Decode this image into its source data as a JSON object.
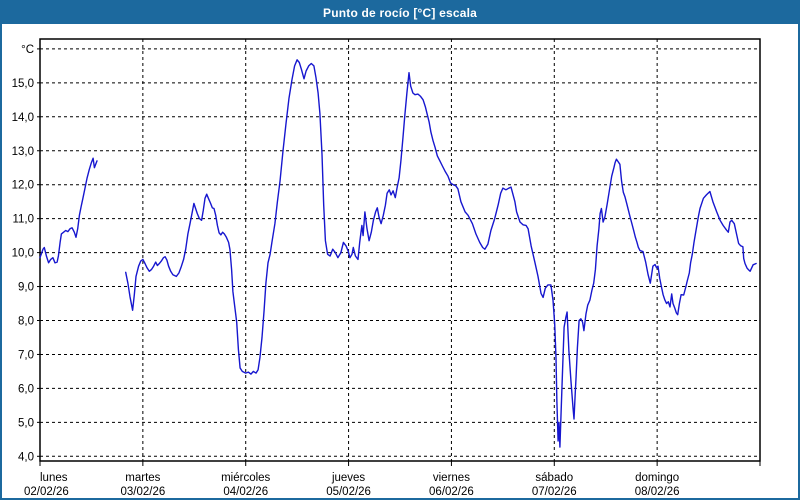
{
  "window": {
    "title": "Punto de rocío [°C] escala"
  },
  "chart_data": {
    "type": "line",
    "title": "Punto de rocío [°C] escala",
    "ylabel": "°C",
    "y_unit_label": "°C",
    "ylim": [
      3.85,
      16.3
    ],
    "y_gridlines": [
      4,
      5,
      6,
      7,
      8,
      9,
      10,
      11,
      12,
      13,
      14,
      15,
      16
    ],
    "y_tick_labels": [
      "4,0",
      "5,0",
      "6,0",
      "7,0",
      "8,0",
      "9,0",
      "10,0",
      "11,0",
      "12,0",
      "13,0",
      "14,0",
      "15,0"
    ],
    "grid": "dashed-black-both-axes",
    "legend": "none",
    "line_color": "#1717cf",
    "grid_color": "#000000",
    "x_hours_range": [
      0,
      168
    ],
    "x_days": [
      {
        "label": "lunes",
        "date": "02/02/26"
      },
      {
        "label": "martes",
        "date": "03/02/26"
      },
      {
        "label": "miércoles",
        "date": "04/02/26"
      },
      {
        "label": "jueves",
        "date": "05/02/26"
      },
      {
        "label": "viernes",
        "date": "06/02/26"
      },
      {
        "label": "sábado",
        "date": "07/02/26"
      },
      {
        "label": "domingo",
        "date": "08/02/26"
      }
    ],
    "segments": [
      [
        [
          0,
          9.85
        ],
        [
          0.7,
          10.1
        ],
        [
          1,
          10.15
        ],
        [
          1.5,
          9.9
        ],
        [
          2,
          9.7
        ],
        [
          2.5,
          9.8
        ],
        [
          3,
          9.85
        ],
        [
          3.5,
          9.7
        ],
        [
          4,
          9.72
        ],
        [
          4.3,
          9.9
        ],
        [
          4.7,
          10.3
        ],
        [
          5,
          10.55
        ],
        [
          5.5,
          10.6
        ],
        [
          6,
          10.65
        ],
        [
          6.5,
          10.62
        ],
        [
          7,
          10.7
        ],
        [
          7.5,
          10.73
        ],
        [
          8,
          10.6
        ],
        [
          8.4,
          10.45
        ],
        [
          8.8,
          10.7
        ],
        [
          9.2,
          11.1
        ],
        [
          9.6,
          11.35
        ],
        [
          10,
          11.6
        ],
        [
          10.5,
          11.9
        ],
        [
          11,
          12.2
        ],
        [
          11.5,
          12.45
        ],
        [
          12,
          12.65
        ],
        [
          12.4,
          12.78
        ],
        [
          12.7,
          12.5
        ],
        [
          13,
          12.6
        ],
        [
          13.3,
          12.7
        ]
      ],
      [
        [
          20,
          9.42
        ],
        [
          20.5,
          9.1
        ],
        [
          21,
          8.7
        ],
        [
          21.6,
          8.3
        ],
        [
          22,
          8.75
        ],
        [
          22.4,
          9.3
        ],
        [
          23,
          9.6
        ],
        [
          23.5,
          9.75
        ],
        [
          24,
          9.8
        ],
        [
          24.5,
          9.68
        ],
        [
          25,
          9.55
        ],
        [
          25.5,
          9.45
        ],
        [
          26,
          9.5
        ],
        [
          26.5,
          9.6
        ],
        [
          27,
          9.72
        ],
        [
          27.4,
          9.62
        ],
        [
          27.8,
          9.67
        ],
        [
          28.3,
          9.75
        ],
        [
          28.8,
          9.85
        ],
        [
          29.2,
          9.88
        ],
        [
          29.6,
          9.78
        ],
        [
          30,
          9.6
        ],
        [
          30.5,
          9.45
        ],
        [
          31,
          9.35
        ],
        [
          31.8,
          9.3
        ],
        [
          32.4,
          9.4
        ],
        [
          33,
          9.6
        ],
        [
          33.5,
          9.8
        ],
        [
          34,
          10.1
        ],
        [
          34.5,
          10.55
        ],
        [
          35,
          10.85
        ],
        [
          35.3,
          11.05
        ],
        [
          35.6,
          11.25
        ],
        [
          35.9,
          11.45
        ],
        [
          36.3,
          11.3
        ],
        [
          36.7,
          11.15
        ],
        [
          37.2,
          11.0
        ],
        [
          37.7,
          10.95
        ],
        [
          38.1,
          11.25
        ],
        [
          38.5,
          11.6
        ],
        [
          38.9,
          11.72
        ],
        [
          39.3,
          11.6
        ],
        [
          39.8,
          11.45
        ],
        [
          40.2,
          11.32
        ],
        [
          40.6,
          11.3
        ],
        [
          41,
          11.1
        ],
        [
          41.4,
          10.8
        ],
        [
          41.8,
          10.58
        ],
        [
          42.2,
          10.52
        ],
        [
          42.6,
          10.6
        ],
        [
          43,
          10.55
        ],
        [
          43.5,
          10.45
        ],
        [
          44,
          10.3
        ],
        [
          44.3,
          10.1
        ],
        [
          44.7,
          9.5
        ],
        [
          45,
          8.85
        ],
        [
          45.5,
          8.35
        ],
        [
          45.9,
          7.95
        ],
        [
          46.3,
          7.15
        ],
        [
          46.7,
          6.6
        ],
        [
          47.2,
          6.5
        ],
        [
          48,
          6.45
        ],
        [
          48.6,
          6.48
        ],
        [
          49.2,
          6.42
        ],
        [
          49.8,
          6.5
        ],
        [
          50.4,
          6.45
        ],
        [
          50.9,
          6.55
        ],
        [
          51.3,
          6.9
        ],
        [
          51.8,
          7.5
        ],
        [
          52.3,
          8.3
        ],
        [
          52.7,
          9.1
        ],
        [
          53.2,
          9.7
        ],
        [
          53.7,
          9.95
        ],
        [
          54.1,
          10.3
        ],
        [
          54.8,
          10.85
        ],
        [
          55.4,
          11.5
        ],
        [
          56,
          12.1
        ],
        [
          56.7,
          13.0
        ],
        [
          57.4,
          13.8
        ],
        [
          58.1,
          14.55
        ],
        [
          58.8,
          15.1
        ],
        [
          59.4,
          15.5
        ],
        [
          60,
          15.68
        ],
        [
          60.5,
          15.6
        ],
        [
          61,
          15.4
        ],
        [
          61.6,
          15.12
        ],
        [
          62.1,
          15.35
        ],
        [
          62.7,
          15.5
        ],
        [
          63.3,
          15.57
        ],
        [
          63.9,
          15.5
        ],
        [
          64.4,
          15.15
        ],
        [
          64.9,
          14.7
        ],
        [
          65.3,
          14.1
        ],
        [
          65.8,
          12.9
        ],
        [
          66.2,
          11.4
        ],
        [
          66.6,
          10.35
        ],
        [
          67.1,
          9.95
        ],
        [
          67.7,
          9.9
        ],
        [
          68.3,
          10.1
        ],
        [
          68.9,
          10.0
        ],
        [
          69.5,
          9.85
        ],
        [
          70.2,
          10.0
        ],
        [
          70.8,
          10.3
        ],
        [
          71.4,
          10.2
        ],
        [
          71.9,
          10.05
        ],
        [
          72.3,
          9.85
        ],
        [
          72.8,
          9.95
        ],
        [
          73.1,
          10.15
        ],
        [
          73.6,
          9.9
        ],
        [
          74.2,
          9.8
        ],
        [
          74.6,
          10.3
        ],
        [
          75.1,
          10.8
        ],
        [
          75.4,
          10.5
        ],
        [
          75.8,
          11.2
        ],
        [
          76.3,
          10.7
        ],
        [
          76.8,
          10.35
        ],
        [
          77.3,
          10.6
        ],
        [
          77.8,
          10.95
        ],
        [
          78.3,
          11.2
        ],
        [
          78.7,
          11.32
        ],
        [
          79.1,
          11.05
        ],
        [
          79.6,
          10.85
        ],
        [
          80.1,
          11.1
        ],
        [
          80.6,
          11.4
        ],
        [
          81,
          11.75
        ],
        [
          81.5,
          11.85
        ],
        [
          81.9,
          11.7
        ],
        [
          82.4,
          11.82
        ],
        [
          82.9,
          11.62
        ],
        [
          83.3,
          11.9
        ],
        [
          83.8,
          12.2
        ],
        [
          84.2,
          12.7
        ],
        [
          84.7,
          13.4
        ],
        [
          85.1,
          14.0
        ],
        [
          85.6,
          14.7
        ],
        [
          86.1,
          15.3
        ],
        [
          86.5,
          14.9
        ],
        [
          87,
          14.7
        ],
        [
          87.5,
          14.65
        ],
        [
          88.2,
          14.67
        ],
        [
          88.8,
          14.6
        ],
        [
          89.4,
          14.5
        ],
        [
          89.9,
          14.3
        ],
        [
          90.3,
          14.1
        ],
        [
          90.8,
          13.85
        ],
        [
          91.2,
          13.55
        ],
        [
          91.7,
          13.3
        ],
        [
          92.2,
          13.1
        ],
        [
          92.7,
          12.85
        ],
        [
          93.3,
          12.7
        ],
        [
          93.9,
          12.55
        ],
        [
          94.5,
          12.4
        ],
        [
          95.2,
          12.25
        ],
        [
          95.8,
          12.05
        ],
        [
          96.4,
          12.0
        ],
        [
          97,
          11.97
        ],
        [
          97.5,
          11.88
        ],
        [
          98.2,
          11.5
        ],
        [
          99.2,
          11.2
        ],
        [
          99.9,
          11.1
        ],
        [
          100.9,
          10.85
        ],
        [
          101.7,
          10.55
        ],
        [
          102.6,
          10.3
        ],
        [
          103.3,
          10.15
        ],
        [
          103.8,
          10.1
        ],
        [
          104.5,
          10.25
        ],
        [
          105.2,
          10.65
        ],
        [
          106.1,
          11.0
        ],
        [
          106.9,
          11.4
        ],
        [
          107.5,
          11.75
        ],
        [
          108,
          11.9
        ],
        [
          108.7,
          11.85
        ],
        [
          109.4,
          11.9
        ],
        [
          109.9,
          11.93
        ],
        [
          110.8,
          11.5
        ],
        [
          111.2,
          11.2
        ],
        [
          112,
          10.9
        ],
        [
          112.7,
          10.82
        ],
        [
          113.4,
          10.8
        ],
        [
          113.9,
          10.7
        ],
        [
          114.6,
          10.2
        ],
        [
          115.5,
          9.7
        ],
        [
          116.2,
          9.3
        ],
        [
          116.9,
          8.8
        ],
        [
          117.4,
          8.68
        ],
        [
          117.9,
          8.95
        ],
        [
          118.5,
          9.05
        ],
        [
          119.2,
          9.05
        ],
        [
          119.7,
          8.6
        ],
        [
          120.1,
          7.9
        ],
        [
          120.4,
          6.9
        ],
        [
          120.6,
          5.6
        ],
        [
          120.9,
          4.45
        ],
        [
          121.1,
          5.0
        ],
        [
          121.3,
          4.27
        ],
        [
          121.6,
          5.3
        ],
        [
          121.9,
          6.4
        ],
        [
          122.3,
          7.8
        ],
        [
          122.7,
          8.1
        ],
        [
          123,
          8.25
        ],
        [
          123.4,
          7.1
        ],
        [
          123.9,
          6.2
        ],
        [
          124.4,
          5.4
        ],
        [
          124.6,
          5.1
        ],
        [
          124.9,
          5.9
        ],
        [
          125.1,
          6.35
        ],
        [
          125.4,
          7.2
        ],
        [
          125.8,
          8.0
        ],
        [
          126.2,
          8.05
        ],
        [
          126.6,
          7.95
        ],
        [
          126.9,
          7.7
        ],
        [
          127.4,
          8.2
        ],
        [
          127.8,
          8.45
        ],
        [
          128.3,
          8.6
        ],
        [
          128.8,
          8.9
        ],
        [
          129.2,
          9.1
        ],
        [
          129.6,
          9.5
        ],
        [
          130,
          10.2
        ],
        [
          130.4,
          10.7
        ],
        [
          130.7,
          11.15
        ],
        [
          131,
          11.3
        ],
        [
          131.4,
          10.9
        ],
        [
          131.8,
          11.05
        ],
        [
          132.3,
          11.4
        ],
        [
          132.8,
          11.78
        ],
        [
          133.4,
          12.25
        ],
        [
          133.9,
          12.5
        ],
        [
          134.2,
          12.65
        ],
        [
          134.5,
          12.75
        ],
        [
          134.9,
          12.68
        ],
        [
          135.3,
          12.6
        ],
        [
          135.7,
          12.1
        ],
        [
          136.1,
          11.78
        ],
        [
          136.5,
          11.64
        ],
        [
          136.9,
          11.45
        ],
        [
          137.3,
          11.25
        ],
        [
          137.7,
          11.05
        ],
        [
          138.1,
          10.85
        ],
        [
          138.5,
          10.66
        ],
        [
          138.9,
          10.46
        ],
        [
          139.3,
          10.3
        ],
        [
          139.6,
          10.16
        ],
        [
          140,
          10.06
        ],
        [
          140.7,
          10.03
        ],
        [
          141.3,
          9.73
        ],
        [
          141.9,
          9.35
        ],
        [
          142.4,
          9.1
        ],
        [
          143,
          9.6
        ],
        [
          143.5,
          9.65
        ],
        [
          143.9,
          9.55
        ],
        [
          144.2,
          9.6
        ],
        [
          144.6,
          9.25
        ],
        [
          145,
          9.0
        ],
        [
          145.4,
          8.76
        ],
        [
          145.8,
          8.6
        ],
        [
          146.2,
          8.5
        ],
        [
          146.6,
          8.55
        ],
        [
          147,
          8.4
        ],
        [
          147.4,
          8.78
        ],
        [
          147.7,
          8.5
        ],
        [
          148.1,
          8.37
        ],
        [
          148.5,
          8.22
        ],
        [
          148.8,
          8.17
        ],
        [
          149.2,
          8.5
        ],
        [
          149.6,
          8.76
        ],
        [
          150.2,
          8.75
        ],
        [
          150.7,
          9.0
        ],
        [
          151,
          9.15
        ],
        [
          151.5,
          9.4
        ],
        [
          151.8,
          9.7
        ],
        [
          152.2,
          9.95
        ],
        [
          152.6,
          10.3
        ],
        [
          153,
          10.6
        ],
        [
          153.6,
          11.05
        ],
        [
          154,
          11.3
        ],
        [
          154.8,
          11.6
        ],
        [
          155.5,
          11.7
        ],
        [
          156.3,
          11.8
        ],
        [
          157,
          11.5
        ],
        [
          157.9,
          11.2
        ],
        [
          158.7,
          10.95
        ],
        [
          159.4,
          10.8
        ],
        [
          160.2,
          10.66
        ],
        [
          160.6,
          10.6
        ],
        [
          161,
          10.9
        ],
        [
          161.4,
          10.95
        ],
        [
          162,
          10.85
        ],
        [
          162.6,
          10.5
        ],
        [
          163,
          10.27
        ],
        [
          163.5,
          10.2
        ],
        [
          164,
          10.17
        ],
        [
          164.2,
          9.83
        ],
        [
          164.5,
          9.68
        ],
        [
          165,
          9.54
        ],
        [
          165.3,
          9.5
        ],
        [
          165.7,
          9.45
        ],
        [
          166.4,
          9.64
        ],
        [
          167.1,
          9.68
        ]
      ]
    ]
  },
  "colors": {
    "titlebar_bg": "#1c699e",
    "titlebar_text": "#ffffff",
    "window_border": "#1c699e",
    "plot_bg": "#ffffff",
    "plot_border": "#000000",
    "line": "#1717cf",
    "grid": "#000000",
    "label_text": "#000000"
  }
}
